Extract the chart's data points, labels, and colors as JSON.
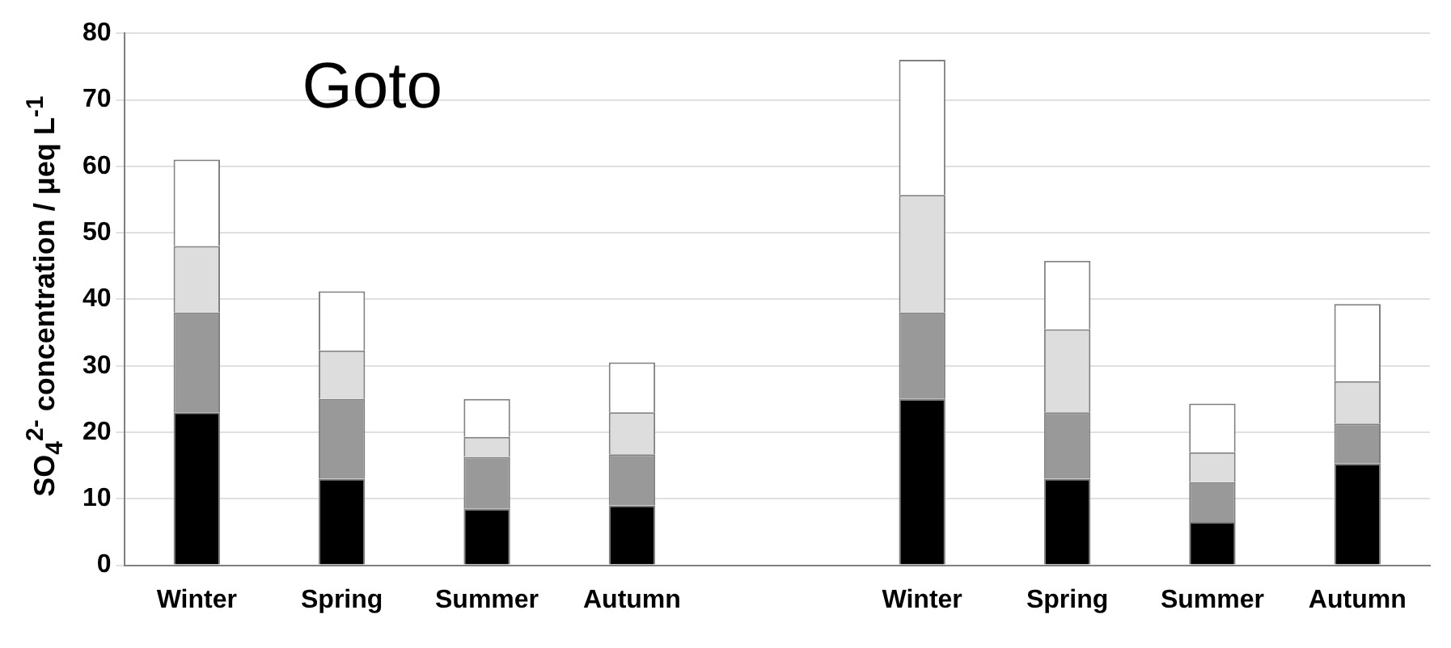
{
  "chart_data": {
    "type": "bar",
    "stacked": true,
    "ylabel": "SO$_{4}$$^{2-}$ concentration / μeq L$^{-1}$",
    "categories": [
      "Winter",
      "Spring",
      "Summer",
      "Autumn",
      null,
      "Winter",
      "Spring",
      "Summer",
      "Autumn"
    ],
    "series": [
      {
        "color": "#000000",
        "values": [
          23,
          13,
          8.5,
          9,
          null,
          25,
          13,
          6.5,
          15.3
        ]
      },
      {
        "color": "#999999",
        "values": [
          15,
          12,
          7.8,
          7.7,
          null,
          13,
          10,
          6,
          6
        ]
      },
      {
        "color": "#dddddd",
        "values": [
          10,
          7.3,
          3,
          6.3,
          null,
          17.7,
          12.5,
          4.5,
          6.4
        ]
      },
      {
        "color": "#ffffff",
        "values": [
          13,
          8.9,
          5.7,
          7.5,
          null,
          20.3,
          10.3,
          7.3,
          11.6
        ]
      }
    ],
    "ylim": [
      0,
      80
    ],
    "yticks": [
      0,
      10,
      20,
      30,
      40,
      50,
      60,
      70,
      80
    ],
    "grid": "y",
    "annotations": [
      "Goto"
    ]
  }
}
